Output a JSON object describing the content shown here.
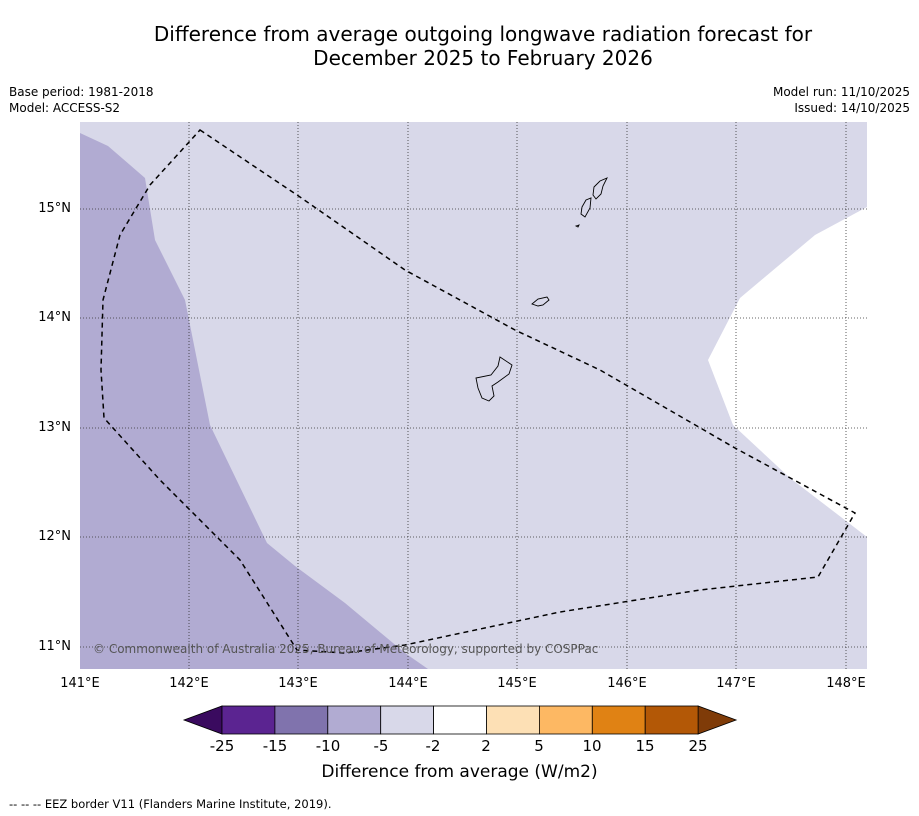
{
  "title": {
    "line1": "Difference from average outgoing longwave radiation forecast for",
    "line2": "December 2025 to February 2026"
  },
  "meta": {
    "base_period": "Base period: 1981-2018",
    "model": "Model: ACCESS-S2",
    "model_run": "Model run: 11/10/2025",
    "issued": "Issued: 14/10/2025"
  },
  "map": {
    "lat_labels": [
      "15°N",
      "14°N",
      "13°N",
      "12°N",
      "11°N"
    ],
    "lon_labels": [
      "141°E",
      "142°E",
      "143°E",
      "144°E",
      "145°E",
      "146°E",
      "147°E",
      "148°E"
    ],
    "copyright": "© Commonwealth of Australia 2025, Bureau of Meteorology, supported by COSPPac",
    "regions": [
      {
        "category": "-10 to -5",
        "color": "#b1abd2"
      },
      {
        "category": "-5 to -2",
        "color": "#d8d8e9"
      },
      {
        "category": "-2 to 2",
        "color": "#ffffff"
      }
    ]
  },
  "colorbar": {
    "title": "Difference from average (W/m2)",
    "ticks": [
      "-25",
      "-15",
      "-10",
      "-5",
      "-2",
      "2",
      "5",
      "10",
      "15",
      "25"
    ],
    "colors": [
      "#5b2491",
      "#8073ad",
      "#b1abd2",
      "#d8d8e9",
      "#ffffff",
      "#fde0b5",
      "#fdb863",
      "#e08214",
      "#b35806"
    ],
    "under_color": "#3a0a5f",
    "over_color": "#7f3b08"
  },
  "footnote": "--  --  -- EEZ border V11 (Flanders Marine Institute, 2019)."
}
